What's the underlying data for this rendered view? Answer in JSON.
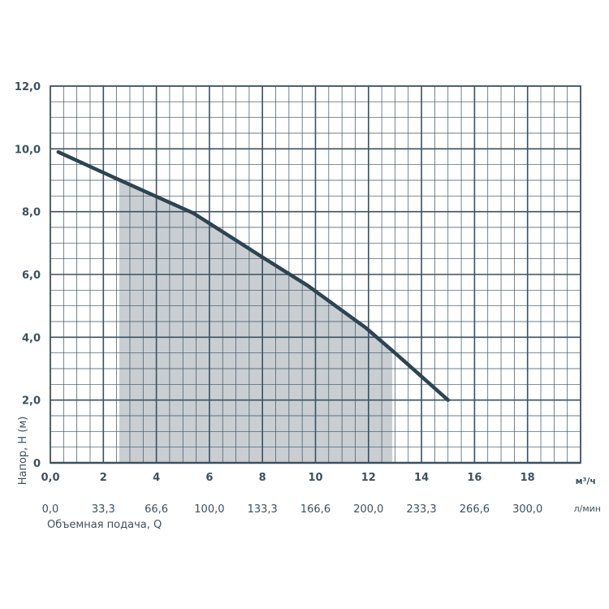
{
  "chart_data": {
    "type": "line",
    "title": "",
    "xlabel": "Объемная подача, Q",
    "ylabel": "Напор, Н (м)",
    "x_unit": "м³/ч",
    "x2_unit": "л/мин",
    "xlim": [
      0,
      20
    ],
    "ylim": [
      0,
      12
    ],
    "x_ticks": [
      "0,0",
      "2",
      "4",
      "6",
      "8",
      "10",
      "12",
      "14",
      "16",
      "18"
    ],
    "x2_ticks": [
      "0,0",
      "33,3",
      "66,6",
      "100,0",
      "133,3",
      "166,6",
      "200,0",
      "233,3",
      "266,6",
      "300,0"
    ],
    "y_ticks": [
      "0",
      "2,0",
      "4,0",
      "6,0",
      "8,0",
      "10,0",
      "12,0"
    ],
    "grid": true,
    "series": [
      {
        "x": [
          0.3,
          2.5,
          5.4,
          8.0,
          9.7,
          11.9,
          13.0,
          15.0
        ],
        "y": [
          9.9,
          9.05,
          7.95,
          6.55,
          5.65,
          4.3,
          3.5,
          2.0
        ]
      }
    ],
    "working_range": [
      2.6,
      12.9
    ],
    "colors": {
      "grid": "#3b5160",
      "curve": "#2d4452",
      "fill": "#c9ced3",
      "text": "#3b5160"
    }
  }
}
